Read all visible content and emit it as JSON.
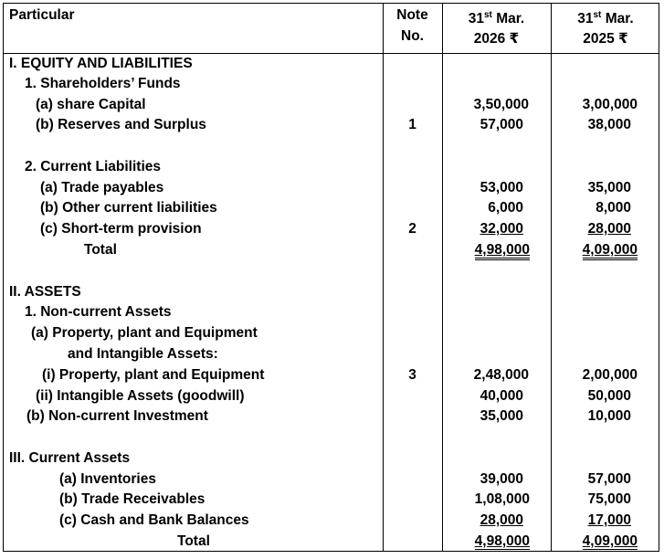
{
  "header": {
    "particular": "Particular",
    "note_line1": "Note",
    "note_line2": "No.",
    "col2026_day": "31",
    "col2026_sup": "st",
    "col2026_month": " Mar.",
    "col2026_year": "2026 ₹",
    "col2025_day": "31",
    "col2025_sup": "st",
    "col2025_month": " Mar.",
    "col2025_year": "2025 ₹"
  },
  "rows": {
    "s1": {
      "label": "I. EQUITY AND LIABILITIES"
    },
    "s1_1": {
      "label": "1. Shareholders’ Funds"
    },
    "share_capital": {
      "label": "(a) share Capital",
      "note": "",
      "y2026": "3,50,000",
      "y2025": "3,00,000"
    },
    "reserves": {
      "label": "(b) Reserves and Surplus",
      "note": "1",
      "y2026": "57,000",
      "y2025": "38,000"
    },
    "s1_2": {
      "label": "2. Current Liabilities"
    },
    "trade_payables": {
      "label": "(a) Trade payables",
      "note": "",
      "y2026": "53,000",
      "y2025": "35,000"
    },
    "other_cl": {
      "label": "(b) Other current liabilities",
      "note": "",
      "y2026": "6,000",
      "y2025": "8,000"
    },
    "st_provision": {
      "label": "(c) Short-term provision",
      "note": "2",
      "y2026": "32,000",
      "y2025": "28,000"
    },
    "total1": {
      "label": "Total",
      "y2026": "4,98,000",
      "y2025": "4,09,000"
    },
    "s2": {
      "label": "II. ASSETS"
    },
    "s2_1": {
      "label": "1. Non-current Assets"
    },
    "ppe_heading1": {
      "label": "(a) Property, plant and Equipment"
    },
    "ppe_heading2": {
      "label": "and Intangible Assets:"
    },
    "ppe": {
      "label": "(i) Property, plant and Equipment",
      "note": "3",
      "y2026": "2,48,000",
      "y2025": "2,00,000"
    },
    "intangible": {
      "label": "(ii) Intangible Assets (goodwill)",
      "note": "",
      "y2026": "40,000",
      "y2025": "50,000"
    },
    "nc_investment": {
      "label": "(b) Non-current Investment",
      "note": "",
      "y2026": "35,000",
      "y2025": "10,000"
    },
    "s3": {
      "label": "III. Current Assets"
    },
    "inventories": {
      "label": "(a) Inventories",
      "note": "",
      "y2026": "39,000",
      "y2025": "57,000"
    },
    "receivables": {
      "label": "(b) Trade Receivables",
      "note": "",
      "y2026": "1,08,000",
      "y2025": "75,000"
    },
    "cash": {
      "label": "(c) Cash and Bank Balances",
      "note": "",
      "y2026": "28,000",
      "y2025": "17,000"
    },
    "total2": {
      "label": "Total",
      "y2026": "4,98,000",
      "y2025": "4,09,000"
    }
  }
}
